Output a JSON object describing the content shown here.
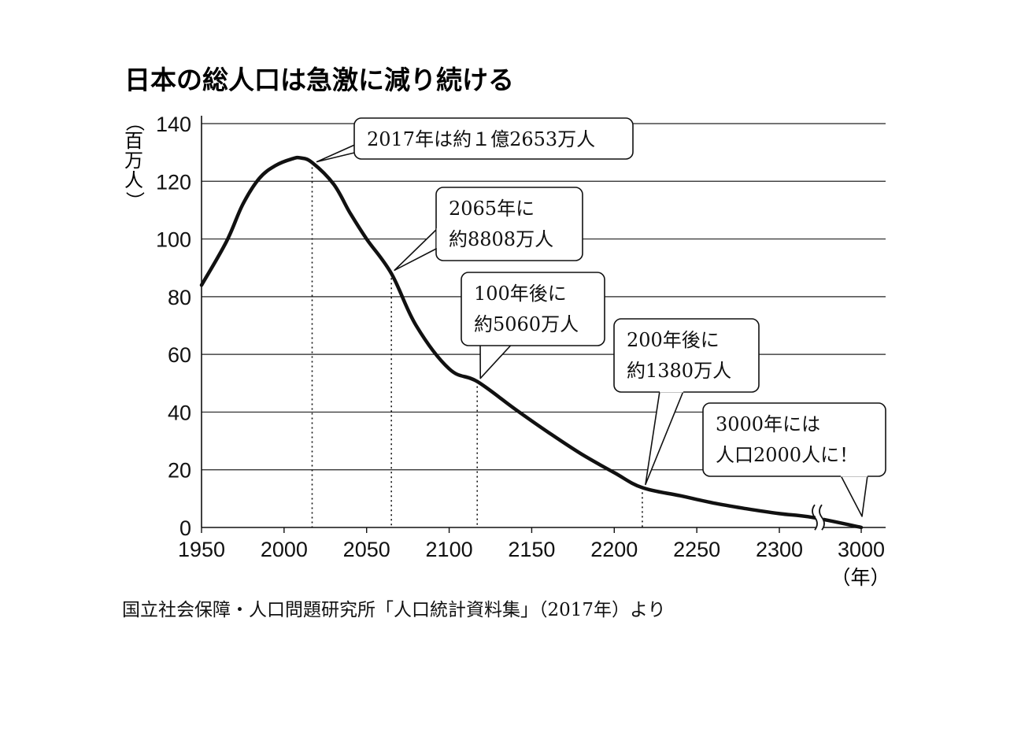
{
  "chart_data": {
    "type": "line",
    "title": "日本の総人口は急激に減り続ける",
    "ylabel": "（百万人）",
    "xlabel": "（年）",
    "xlim": [
      1950,
      3000
    ],
    "ylim": [
      0,
      140
    ],
    "x_ticks": [
      "1950",
      "2000",
      "2050",
      "2100",
      "2150",
      "2200",
      "2250",
      "2300",
      "3000"
    ],
    "y_ticks": [
      "0",
      "20",
      "40",
      "60",
      "80",
      "100",
      "120",
      "140"
    ],
    "grid": "horizontal",
    "axis_break": "between 2300 and 3000",
    "series": [
      {
        "x": [
          1950,
          1965,
          1975,
          1985,
          1995,
          2005,
          2010,
          2017,
          2030,
          2040,
          2050,
          2065,
          2080,
          2100,
          2117,
          2140,
          2160,
          2180,
          2200,
          2217,
          2240,
          2260,
          2280,
          2300,
          2320,
          3000
        ],
        "y": [
          84,
          99,
          112,
          121,
          125.5,
          127.8,
          128.1,
          126.5,
          119,
          109,
          100,
          88,
          70,
          55,
          50.6,
          41,
          33,
          25.5,
          19,
          13.8,
          11,
          8.5,
          6.5,
          4.8,
          3.5,
          0.02
        ]
      }
    ],
    "annotations": [
      {
        "x": 2017,
        "y": 126.5,
        "lines": [
          "2017年は約１億2653万人"
        ]
      },
      {
        "x": 2065,
        "y": 88.08,
        "lines": [
          "2065年に",
          "約8808万人"
        ]
      },
      {
        "x": 2117,
        "y": 50.6,
        "lines": [
          "100年後に",
          "約5060万人"
        ]
      },
      {
        "x": 2217,
        "y": 13.8,
        "lines": [
          "200年後に",
          "約1380万人"
        ]
      },
      {
        "x": 3000,
        "y": 0.02,
        "lines": [
          "3000年には",
          "人口2000人に！"
        ]
      }
    ]
  },
  "source": "国立社会保障・人口問題研究所「人口統計資料集」（2017年）より"
}
